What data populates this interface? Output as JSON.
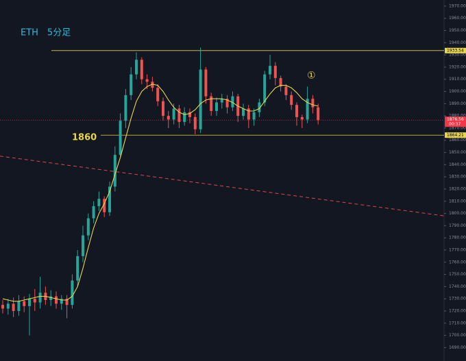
{
  "chart_data": {
    "type": "candlestick",
    "title": "ETH　5分足",
    "ylim": [
      1679,
      1975
    ],
    "yticks": [
      {
        "value": 1690,
        "label": "1690.00"
      },
      {
        "value": 1700,
        "label": "1700.00"
      },
      {
        "value": 1710,
        "label": "1710.00"
      },
      {
        "value": 1720,
        "label": "1720.00"
      },
      {
        "value": 1730,
        "label": "1730.00"
      },
      {
        "value": 1740,
        "label": "1740.00"
      },
      {
        "value": 1750,
        "label": "1750.00"
      },
      {
        "value": 1760,
        "label": "1760.00"
      },
      {
        "value": 1770,
        "label": "1770.00"
      },
      {
        "value": 1780,
        "label": "1780.00"
      },
      {
        "value": 1790,
        "label": "1790.00"
      },
      {
        "value": 1800,
        "label": "1800.00"
      },
      {
        "value": 1810,
        "label": "1810.00"
      },
      {
        "value": 1820,
        "label": "1820.00"
      },
      {
        "value": 1830,
        "label": "1830.00"
      },
      {
        "value": 1840,
        "label": "1840.00"
      },
      {
        "value": 1850,
        "label": "1850.00"
      },
      {
        "value": 1860,
        "label": "1860.00"
      },
      {
        "value": 1870,
        "label": "1870.00"
      },
      {
        "value": 1880,
        "label": "1880.00"
      },
      {
        "value": 1890,
        "label": "1890.00"
      },
      {
        "value": 1900,
        "label": "1900.00"
      },
      {
        "value": 1910,
        "label": "1910.00"
      },
      {
        "value": 1920,
        "label": "1920.00"
      },
      {
        "value": 1930,
        "label": "1930.00"
      },
      {
        "value": 1940,
        "label": "1940.00"
      },
      {
        "value": 1950,
        "label": "1950.00"
      },
      {
        "value": 1960,
        "label": "1960.00"
      },
      {
        "value": 1970,
        "label": "1970.00"
      }
    ],
    "up_color": "#26a69a",
    "down_color": "#ef5350",
    "open": [
      1725,
      1722,
      1726,
      1720,
      1728,
      1724,
      1730,
      1727,
      1735,
      1729,
      1732,
      1726,
      1730,
      1725,
      1745,
      1765,
      1782,
      1796,
      1806,
      1812,
      1801,
      1822,
      1848,
      1876,
      1897,
      1914,
      1926,
      1910,
      1908,
      1903,
      1892,
      1880,
      1877,
      1886,
      1875,
      1883,
      1879,
      1869,
      1918,
      1896,
      1884,
      1891,
      1894,
      1887,
      1896,
      1880,
      1886,
      1877,
      1883,
      1891,
      1914,
      1921,
      1911,
      1904,
      1897,
      1889,
      1879,
      1877,
      1894,
      1887
    ],
    "high": [
      1729,
      1730,
      1731,
      1733,
      1732,
      1734,
      1738,
      1748,
      1740,
      1737,
      1736,
      1733,
      1733,
      1750,
      1770,
      1790,
      1800,
      1810,
      1818,
      1814,
      1826,
      1855,
      1882,
      1902,
      1920,
      1932,
      1928,
      1914,
      1912,
      1906,
      1895,
      1884,
      1890,
      1889,
      1887,
      1886,
      1882,
      1936,
      1920,
      1899,
      1895,
      1898,
      1897,
      1900,
      1898,
      1890,
      1889,
      1886,
      1894,
      1917,
      1930,
      1924,
      1913,
      1906,
      1900,
      1891,
      1881,
      1904,
      1897,
      1890
    ],
    "low": [
      1718,
      1717,
      1715,
      1716,
      1719,
      1700,
      1720,
      1722,
      1725,
      1724,
      1722,
      1721,
      1714,
      1722,
      1740,
      1760,
      1778,
      1792,
      1802,
      1797,
      1798,
      1818,
      1845,
      1870,
      1893,
      1910,
      1906,
      1902,
      1900,
      1888,
      1876,
      1870,
      1873,
      1870,
      1872,
      1874,
      1865,
      1866,
      1890,
      1880,
      1880,
      1886,
      1882,
      1884,
      1875,
      1877,
      1870,
      1872,
      1879,
      1888,
      1910,
      1905,
      1900,
      1893,
      1885,
      1872,
      1870,
      1874,
      1882,
      1873
    ],
    "close": [
      1722,
      1726,
      1720,
      1728,
      1724,
      1730,
      1727,
      1735,
      1729,
      1732,
      1726,
      1730,
      1725,
      1745,
      1765,
      1782,
      1796,
      1806,
      1812,
      1801,
      1822,
      1848,
      1876,
      1897,
      1914,
      1926,
      1910,
      1908,
      1903,
      1892,
      1880,
      1877,
      1886,
      1875,
      1883,
      1879,
      1869,
      1918,
      1896,
      1884,
      1891,
      1894,
      1887,
      1896,
      1880,
      1886,
      1877,
      1883,
      1891,
      1914,
      1921,
      1911,
      1904,
      1897,
      1889,
      1879,
      1877,
      1894,
      1887,
      1876.56
    ],
    "ma": {
      "color": "#e8d44d",
      "values": [
        1730,
        1729,
        1728,
        1728,
        1729,
        1730,
        1731,
        1732,
        1732,
        1731,
        1730,
        1729,
        1729,
        1732,
        1740,
        1755,
        1772,
        1788,
        1800,
        1808,
        1818,
        1832,
        1846,
        1862,
        1878,
        1892,
        1900,
        1904,
        1906,
        1905,
        1900,
        1893,
        1887,
        1883,
        1881,
        1882,
        1885,
        1890,
        1893,
        1894,
        1894,
        1894,
        1893,
        1891,
        1888,
        1886,
        1884,
        1884,
        1886,
        1892,
        1898,
        1903,
        1905,
        1905,
        1903,
        1899,
        1894,
        1891,
        1889,
        1888
      ]
    },
    "levels": [
      {
        "value": 1933.54,
        "color": "#e8d44d"
      },
      {
        "value": 1864.21,
        "color": "#e8d44d"
      }
    ],
    "current": {
      "value": 1876.56,
      "countdown": "00:37",
      "color": "#f23645"
    },
    "trendline": {
      "from": 1847,
      "to": 1798,
      "color": "#e04848"
    },
    "annotations": [
      {
        "text": "1860",
        "price": 1862
      },
      {
        "text": "①",
        "price": 1913
      }
    ]
  }
}
